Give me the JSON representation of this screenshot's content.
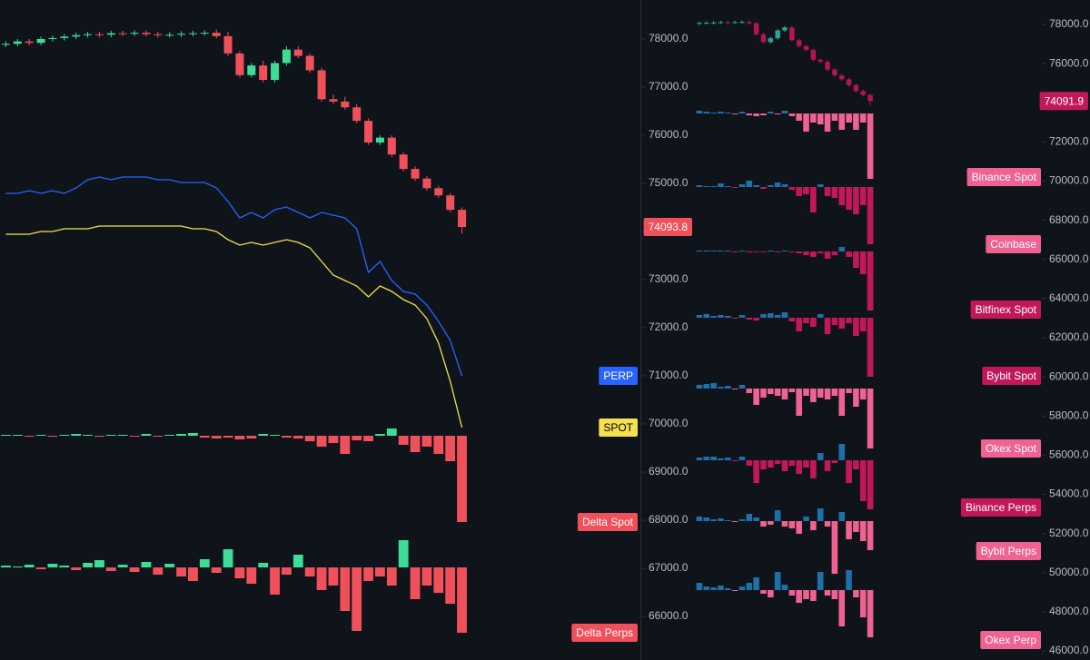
{
  "chart_data": [
    {
      "type": "candlestick",
      "up_color": "#3ddc97",
      "down_color": "#f0505a",
      "open": [
        77880,
        77900,
        77950,
        77920,
        78000,
        78020,
        78050,
        78080,
        78100,
        78090,
        78120,
        78110,
        78130,
        78100,
        78080,
        78090,
        78110,
        78120,
        78130,
        78060,
        77700,
        77250,
        77450,
        77150,
        77500,
        77780,
        77650,
        77350,
        76750,
        76700,
        76580,
        76300,
        75850,
        75950,
        75600,
        75300,
        75100,
        74900,
        74750,
        74450
      ],
      "high": [
        77950,
        78000,
        78000,
        78050,
        78070,
        78100,
        78130,
        78150,
        78150,
        78170,
        78170,
        78180,
        78180,
        78150,
        78140,
        78160,
        78170,
        78180,
        78200,
        78150,
        77750,
        77500,
        77550,
        77550,
        77850,
        77850,
        77700,
        77400,
        76850,
        76800,
        76650,
        76350,
        76000,
        76000,
        75650,
        75350,
        75150,
        74950,
        74800,
        74500
      ],
      "low": [
        77830,
        77850,
        77870,
        77870,
        77950,
        77970,
        78000,
        78030,
        78040,
        78040,
        78060,
        78060,
        78050,
        78030,
        78030,
        78040,
        78060,
        78070,
        78010,
        77650,
        77200,
        77200,
        77100,
        77100,
        77450,
        77600,
        77300,
        76700,
        76650,
        76530,
        76250,
        75800,
        75800,
        75550,
        75250,
        75050,
        74850,
        74700,
        74400,
        73950
      ],
      "close": [
        77900,
        77950,
        77920,
        78000,
        78020,
        78050,
        78080,
        78100,
        78090,
        78120,
        78110,
        78130,
        78100,
        78080,
        78090,
        78110,
        78120,
        78130,
        78060,
        77700,
        77250,
        77450,
        77150,
        77500,
        77780,
        77650,
        77350,
        76750,
        76700,
        76580,
        76300,
        75850,
        75950,
        75600,
        75300,
        75100,
        74900,
        74750,
        74450,
        74094
      ],
      "ylim": [
        65094,
        78811
      ],
      "yticks": [
        {
          "value": 78000,
          "label": "78000.0"
        },
        {
          "value": 77000,
          "label": "77000.0"
        },
        {
          "value": 76000,
          "label": "76000.0"
        },
        {
          "value": 75000,
          "label": "75000.0"
        },
        {
          "value": 74000,
          "label": "74000.0"
        },
        {
          "value": 73000,
          "label": "73000.0"
        },
        {
          "value": 72000,
          "label": "72000.0"
        },
        {
          "value": 71000,
          "label": "71000.0"
        },
        {
          "value": 70000,
          "label": "70000.0"
        },
        {
          "value": 69000,
          "label": "69000.0"
        },
        {
          "value": 68000,
          "label": "68000.0"
        },
        {
          "value": 67000,
          "label": "67000.0"
        },
        {
          "value": 66000,
          "label": "66000.0"
        }
      ],
      "last_price": 74093.8,
      "last_price_color": "#f0505a"
    },
    {
      "type": "line",
      "ylim": [
        0,
        100
      ],
      "series": [
        {
          "name": "PERP",
          "color": "#2962ff",
          "values": [
            89,
            89,
            90,
            89,
            90,
            89,
            91,
            94,
            95,
            94,
            95,
            95,
            95,
            94,
            94,
            93,
            93,
            93,
            91,
            86,
            80,
            82,
            80,
            83,
            84,
            82,
            80,
            82,
            81,
            80,
            76,
            60,
            64,
            57,
            53,
            52,
            48,
            42,
            35,
            22
          ]
        },
        {
          "name": "SPOT",
          "color": "#f5e050",
          "values": [
            74,
            74,
            74,
            75,
            75,
            76,
            76,
            76,
            77,
            77,
            77,
            77,
            77,
            77,
            77,
            77,
            76,
            76,
            75,
            72,
            70,
            71,
            70,
            71,
            72,
            71,
            69,
            64,
            59,
            57,
            55,
            51,
            55,
            53,
            50,
            48,
            43,
            34,
            20,
            3
          ]
        }
      ]
    },
    {
      "type": "bar",
      "label": "Delta Spot",
      "color": "#f0505a",
      "up_color": "#3ddc97",
      "down_color": "#f0505a",
      "ylim": [
        -95,
        30
      ],
      "values": [
        1,
        1,
        -1,
        1,
        -1,
        1,
        2,
        1,
        -1,
        1,
        1,
        -1,
        2,
        -1,
        1,
        2,
        3,
        -2,
        -3,
        -2,
        -4,
        -3,
        2,
        1,
        -2,
        -3,
        -6,
        -12,
        -8,
        -20,
        -5,
        -6,
        2,
        8,
        -10,
        -18,
        -12,
        -20,
        -28,
        -95
      ]
    },
    {
      "type": "bar",
      "label": "Delta Perps",
      "color": "#f0505a",
      "up_color": "#3ddc97",
      "down_color": "#f0505a",
      "ylim": [
        -72,
        43
      ],
      "values": [
        2,
        1,
        3,
        -2,
        4,
        2,
        -3,
        5,
        8,
        -4,
        3,
        -5,
        6,
        -8,
        4,
        -10,
        -15,
        9,
        -6,
        20,
        -12,
        -18,
        5,
        -30,
        -8,
        14,
        -10,
        -25,
        -20,
        -48,
        -70,
        -15,
        -10,
        -20,
        30,
        -35,
        -20,
        -28,
        -40,
        -72
      ]
    },
    {
      "type": "candlestick",
      "up_color": "#26a69a",
      "down_color": "#b5154f",
      "open": [
        78050,
        78080,
        78090,
        78100,
        78120,
        78110,
        78120,
        78130,
        78060,
        77500,
        77100,
        77300,
        77700,
        77850,
        77200,
        76900,
        76700,
        76200,
        76100,
        75700,
        75400,
        75200,
        74900,
        74600,
        74400
      ],
      "high": [
        78160,
        78170,
        78180,
        78200,
        78200,
        78200,
        78210,
        78210,
        78140,
        77580,
        77380,
        77780,
        77930,
        77930,
        77280,
        76980,
        76780,
        76280,
        76180,
        75780,
        75480,
        75280,
        74980,
        74680,
        74480
      ],
      "low": [
        77970,
        78000,
        78010,
        78020,
        78030,
        78030,
        78040,
        77980,
        77420,
        77020,
        77020,
        77220,
        77620,
        77120,
        76820,
        76620,
        76120,
        76020,
        75620,
        75320,
        75120,
        74820,
        74520,
        74320,
        73850
      ],
      "close": [
        78080,
        78090,
        78100,
        78120,
        78110,
        78120,
        78130,
        78060,
        77500,
        77100,
        77300,
        77700,
        77850,
        77200,
        76900,
        76700,
        76200,
        76100,
        75700,
        75400,
        75200,
        74900,
        74600,
        74400,
        74092
      ],
      "ylim": [
        45536,
        79252
      ],
      "yticks": [
        {
          "value": 78000,
          "label": "78000.0"
        },
        {
          "value": 76000,
          "label": "76000.0"
        },
        {
          "value": 74000,
          "label": "74000.0"
        },
        {
          "value": 72000,
          "label": "72000.0"
        },
        {
          "value": 70000,
          "label": "70000.0"
        },
        {
          "value": 68000,
          "label": "68000.0"
        },
        {
          "value": 66000,
          "label": "66000.0"
        },
        {
          "value": 64000,
          "label": "64000.0"
        },
        {
          "value": 62000,
          "label": "62000.0"
        },
        {
          "value": 60000,
          "label": "60000.0"
        },
        {
          "value": 58000,
          "label": "58000.0"
        },
        {
          "value": 56000,
          "label": "56000.0"
        },
        {
          "value": 54000,
          "label": "54000.0"
        },
        {
          "value": 52000,
          "label": "52000.0"
        },
        {
          "value": 50000,
          "label": "50000.0"
        },
        {
          "value": 48000,
          "label": "48000.0"
        },
        {
          "value": 46000,
          "label": "46000.0"
        }
      ],
      "last_price": 74091.9,
      "last_price_color": "#c2185b"
    },
    {
      "type": "bar",
      "label": "Binance Spot",
      "color": "#f06292",
      "up_color": "#1f6fa8",
      "down_color": "#f06292",
      "ylim": [
        -70,
        25
      ],
      "values": [
        3,
        2,
        1,
        2,
        1,
        -1,
        2,
        -2,
        -3,
        -2,
        2,
        -1,
        3,
        -3,
        -8,
        -20,
        -10,
        -12,
        -20,
        -8,
        -18,
        -10,
        -18,
        -10,
        -72
      ]
    },
    {
      "type": "bar",
      "label": "Coinbase",
      "color": "#f06292",
      "up_color": "#1f6fa8",
      "down_color": "#c2185b",
      "ylim": [
        -70,
        25
      ],
      "values": [
        2,
        1,
        1,
        4,
        1,
        -1,
        3,
        7,
        2,
        -2,
        2,
        5,
        3,
        -3,
        -10,
        -8,
        -28,
        3,
        -10,
        -12,
        -20,
        -25,
        -30,
        -20,
        -63
      ]
    },
    {
      "type": "bar",
      "label": "Bitfinex Spot",
      "color": "#c2185b",
      "up_color": "#1f6fa8",
      "down_color": "#c2185b",
      "ylim": [
        -70,
        25
      ],
      "values": [
        1,
        1,
        1,
        1,
        1,
        -1,
        1,
        -1,
        -1,
        -1,
        1,
        -1,
        1,
        -1,
        -2,
        -4,
        -6,
        -2,
        -8,
        -4,
        5,
        -6,
        -18,
        -25,
        -65
      ]
    },
    {
      "type": "bar",
      "label": "Bybit Spot",
      "color": "#c2185b",
      "up_color": "#1f6fa8",
      "down_color": "#c2185b",
      "ylim": [
        -70,
        25
      ],
      "values": [
        3,
        4,
        2,
        3,
        2,
        -1,
        3,
        -2,
        -3,
        4,
        5,
        3,
        6,
        -4,
        -15,
        -6,
        -10,
        4,
        -18,
        -8,
        -12,
        -6,
        -20,
        -15,
        -65
      ]
    },
    {
      "type": "bar",
      "label": "Okex Spot",
      "color": "#f06292",
      "up_color": "#1f6fa8",
      "down_color": "#f06292",
      "ylim": [
        -70,
        25
      ],
      "values": [
        4,
        5,
        6,
        2,
        3,
        -1,
        4,
        -5,
        -18,
        -10,
        -6,
        -8,
        -12,
        -4,
        -30,
        -8,
        -15,
        -10,
        -12,
        -8,
        -30,
        -5,
        -20,
        -12,
        -66
      ]
    },
    {
      "type": "bar",
      "label": "Binance Perps",
      "color": "#c2185b",
      "up_color": "#1f6fa8",
      "down_color": "#c2185b",
      "ylim": [
        -70,
        25
      ],
      "values": [
        3,
        4,
        4,
        2,
        3,
        -1,
        4,
        -6,
        -25,
        -10,
        -8,
        -4,
        -12,
        -6,
        -15,
        -8,
        -20,
        8,
        -12,
        -3,
        18,
        -25,
        -10,
        -45,
        -54
      ]
    },
    {
      "type": "bar",
      "label": "Bybit Perps",
      "color": "#f06292",
      "up_color": "#1f6fa8",
      "down_color": "#f06292",
      "ylim": [
        -70,
        25
      ],
      "values": [
        5,
        4,
        2,
        3,
        1,
        -1,
        2,
        8,
        4,
        -6,
        -4,
        12,
        -6,
        -8,
        -14,
        5,
        -10,
        14,
        -6,
        -58,
        10,
        -20,
        -12,
        -22,
        -32
      ]
    },
    {
      "type": "bar",
      "label": "Okex Perp",
      "color": "#f06292",
      "up_color": "#1f6fa8",
      "down_color": "#f06292",
      "ylim": [
        -70,
        25
      ],
      "values": [
        8,
        4,
        3,
        5,
        2,
        -1,
        4,
        8,
        14,
        -4,
        -8,
        20,
        6,
        -6,
        -14,
        -10,
        -12,
        20,
        -6,
        -10,
        -40,
        22,
        -8,
        -30,
        -52
      ]
    }
  ]
}
